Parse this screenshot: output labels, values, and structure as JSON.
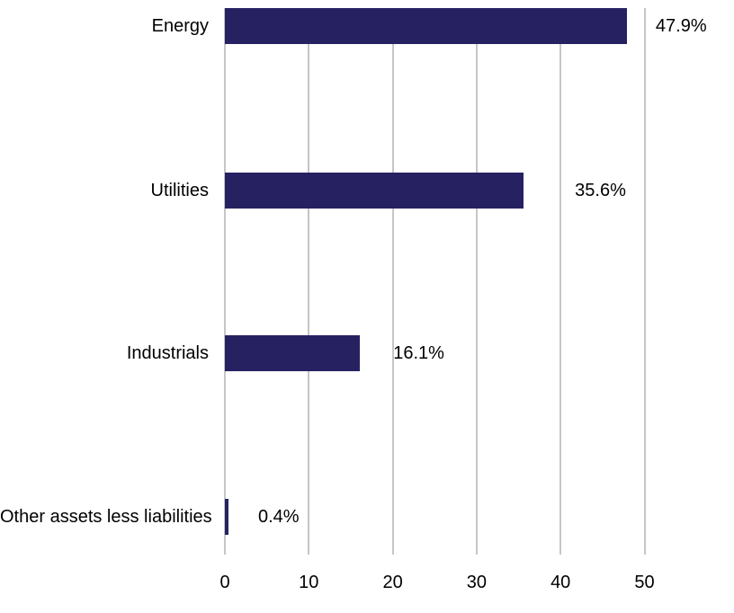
{
  "chart_data": {
    "type": "bar",
    "orientation": "horizontal",
    "title": "",
    "xlabel": "",
    "ylabel": "",
    "categories": [
      "Energy",
      "Utilities",
      "Industrials",
      "Other assets less liabilities"
    ],
    "values": [
      47.9,
      35.6,
      16.1,
      0.4
    ],
    "value_labels": [
      "47.9%",
      "35.6%",
      "16.1%",
      "0.4%"
    ],
    "unit": "%",
    "xlim": [
      0,
      50
    ],
    "xticks": [
      0,
      10,
      20,
      30,
      40,
      50
    ],
    "xtick_labels": [
      "0",
      "10",
      "20",
      "30",
      "40",
      "50"
    ],
    "grid": true,
    "gridline_orientation": "vertical",
    "legend": false,
    "bar_color": "#262262",
    "gridline_color": "#c6c6c6",
    "text_color": "#000000",
    "background_color": "#ffffff"
  }
}
